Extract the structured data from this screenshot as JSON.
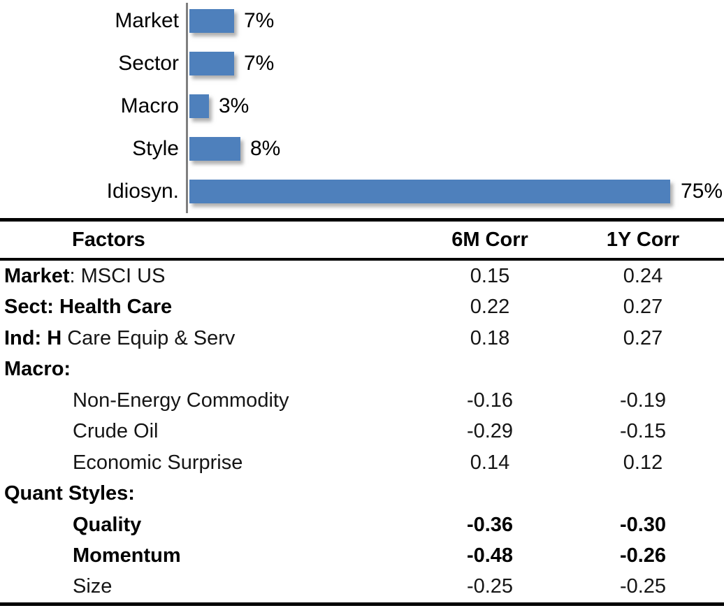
{
  "chart_data": {
    "type": "bar",
    "orientation": "horizontal",
    "title": "",
    "xlabel": "",
    "ylabel": "",
    "categories": [
      "Market",
      "Sector",
      "Macro",
      "Style",
      "Idiosyn."
    ],
    "values": [
      7,
      7,
      3,
      8,
      75
    ],
    "value_labels": [
      "7%",
      "7%",
      "3%",
      "8%",
      "75%"
    ],
    "xlim": [
      0,
      75
    ],
    "grid": false,
    "legend": false,
    "bar_color": "#4E80BC",
    "axis_color": "#7F7F7F"
  },
  "table": {
    "header": {
      "factors": "Factors",
      "corr6m": "6M Corr",
      "corr1y": "1Y Corr"
    },
    "rows": [
      {
        "segments": [
          {
            "text": "Market",
            "bold": true
          },
          {
            "text": ": MSCI US",
            "bold": false
          }
        ],
        "indent": false,
        "corr6m": "0.15",
        "corr1y": "0.24",
        "values_bold": false
      },
      {
        "segments": [
          {
            "text": "Sect: Health Care",
            "bold": true
          }
        ],
        "indent": false,
        "corr6m": "0.22",
        "corr1y": "0.27",
        "values_bold": false
      },
      {
        "segments": [
          {
            "text": "Ind: H",
            "bold": true
          },
          {
            "text": " Care Equip & Serv",
            "bold": false
          }
        ],
        "indent": false,
        "corr6m": "0.18",
        "corr1y": "0.27",
        "values_bold": false
      },
      {
        "segments": [
          {
            "text": "Macro:",
            "bold": true
          }
        ],
        "indent": false,
        "corr6m": "",
        "corr1y": "",
        "values_bold": false
      },
      {
        "segments": [
          {
            "text": "Non-Energy Commodity",
            "bold": false
          }
        ],
        "indent": true,
        "corr6m": "-0.16",
        "corr1y": "-0.19",
        "values_bold": false
      },
      {
        "segments": [
          {
            "text": "Crude Oil",
            "bold": false
          }
        ],
        "indent": true,
        "corr6m": "-0.29",
        "corr1y": "-0.15",
        "values_bold": false
      },
      {
        "segments": [
          {
            "text": "Economic Surprise",
            "bold": false
          }
        ],
        "indent": true,
        "corr6m": "0.14",
        "corr1y": "0.12",
        "values_bold": false
      },
      {
        "segments": [
          {
            "text": "Quant Styles:",
            "bold": true
          }
        ],
        "indent": false,
        "corr6m": "",
        "corr1y": "",
        "values_bold": false
      },
      {
        "segments": [
          {
            "text": "Quality",
            "bold": true
          }
        ],
        "indent": true,
        "corr6m": "-0.36",
        "corr1y": "-0.30",
        "values_bold": true
      },
      {
        "segments": [
          {
            "text": "Momentum",
            "bold": true
          }
        ],
        "indent": true,
        "corr6m": "-0.48",
        "corr1y": "-0.26",
        "values_bold": true
      },
      {
        "segments": [
          {
            "text": "Size",
            "bold": false
          }
        ],
        "indent": true,
        "corr6m": "-0.25",
        "corr1y": "-0.25",
        "values_bold": false
      }
    ]
  }
}
